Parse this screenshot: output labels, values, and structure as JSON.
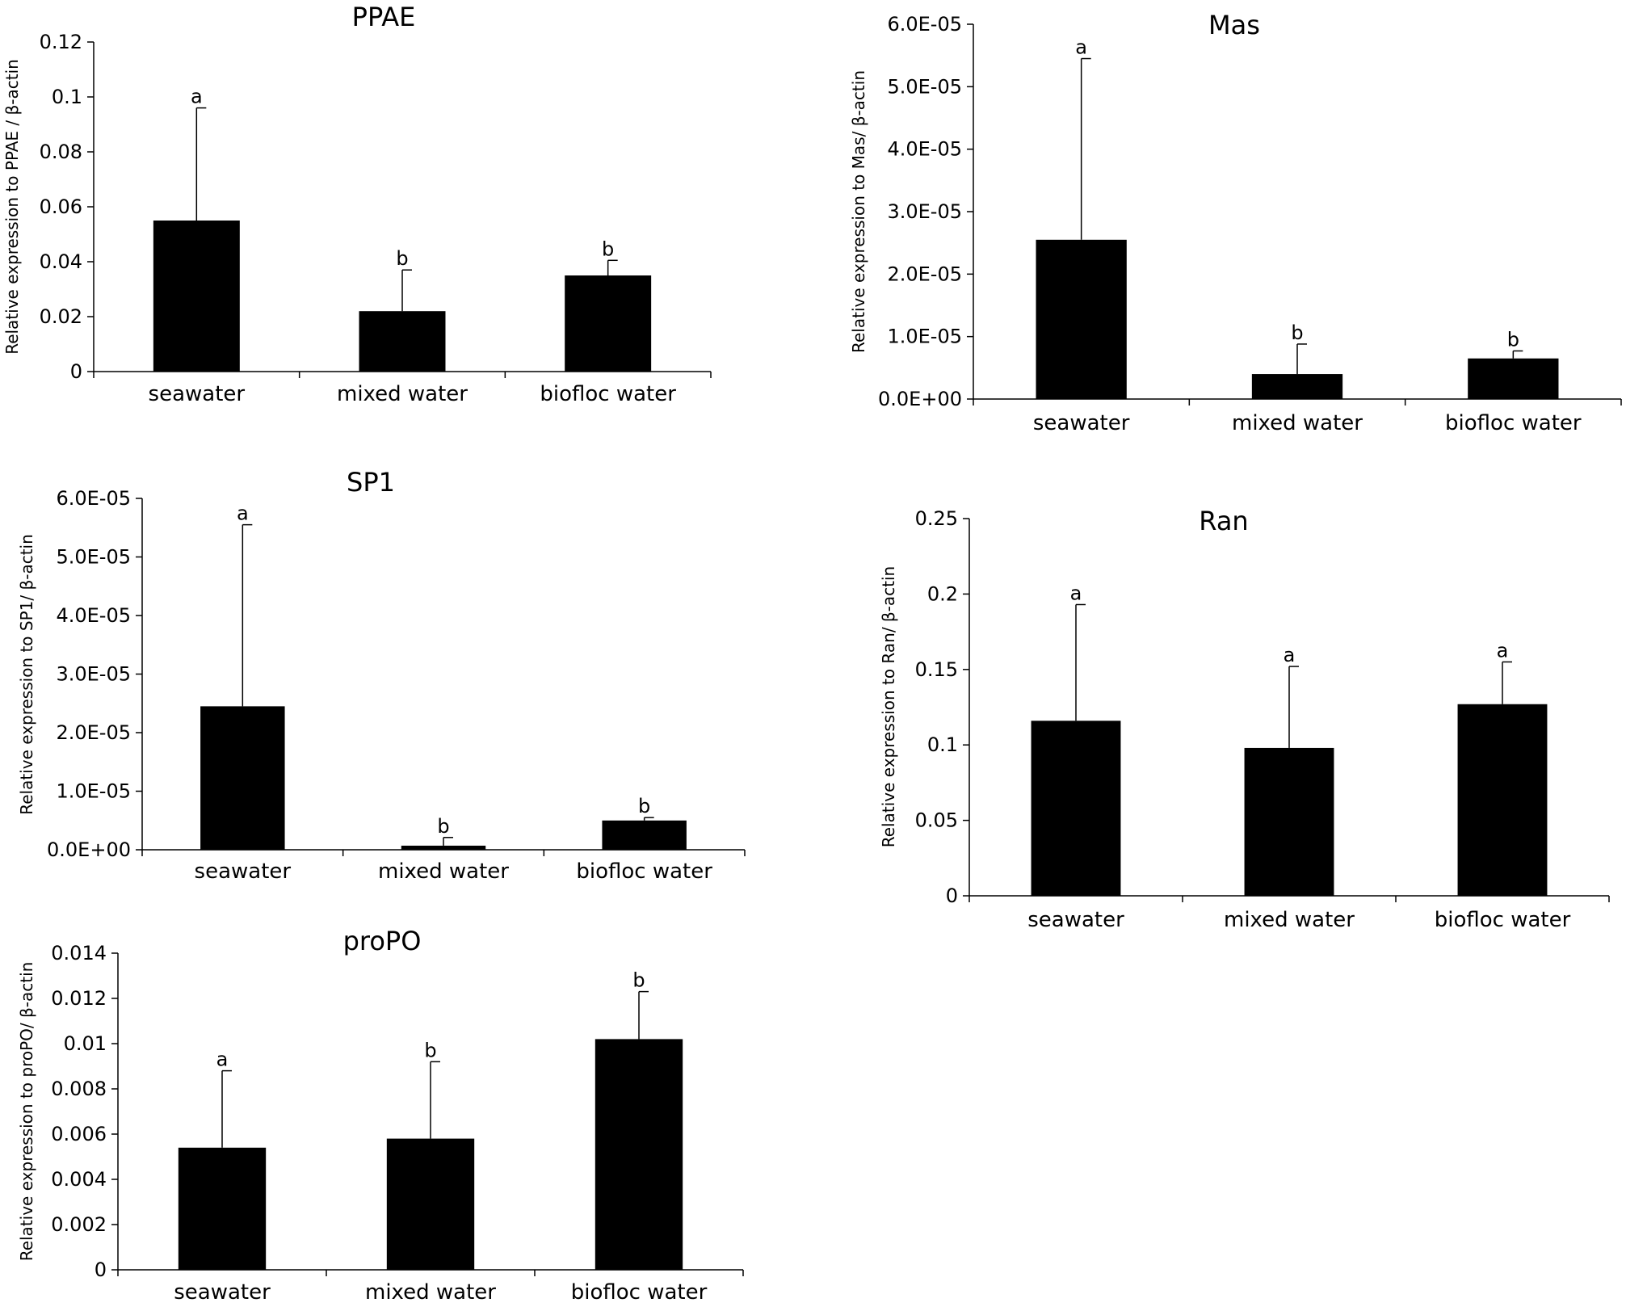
{
  "chart_data": [
    {
      "id": "ppae",
      "type": "bar",
      "title": "PPAE",
      "ylabel": "Relative expression to PPAE / β-actin",
      "categories": [
        "seawater",
        "mixed water",
        "biofloc water"
      ],
      "values": [
        0.055,
        0.022,
        0.035
      ],
      "errors": [
        0.041,
        0.015,
        0.0055
      ],
      "significance": [
        "a",
        "b",
        "b"
      ],
      "ylim": [
        0,
        0.12
      ],
      "yticks": [
        0,
        0.02,
        0.04,
        0.06,
        0.08,
        0.1,
        0.12
      ],
      "ytick_labels": [
        "0",
        "0.02",
        "0.04",
        "0.06",
        "0.08",
        "0.1",
        "0.12"
      ],
      "bar_color": "#000000"
    },
    {
      "id": "mas",
      "type": "bar",
      "title": "Mas",
      "ylabel": "Relative expression to Mas/ β-actin",
      "categories": [
        "seawater",
        "mixed water",
        "biofloc water"
      ],
      "values": [
        2.55e-05,
        4e-06,
        6.5e-06
      ],
      "errors": [
        2.9e-05,
        4.8e-06,
        1.2e-06
      ],
      "significance": [
        "a",
        "b",
        "b"
      ],
      "ylim": [
        0,
        6e-05
      ],
      "yticks": [
        0,
        1e-05,
        2e-05,
        3e-05,
        4e-05,
        5e-05,
        6e-05
      ],
      "ytick_labels": [
        "0.0E+00",
        "1.0E-05",
        "2.0E-05",
        "3.0E-05",
        "4.0E-05",
        "5.0E-05",
        "6.0E-05"
      ],
      "bar_color": "#000000"
    },
    {
      "id": "sp1",
      "type": "bar",
      "title": "SP1",
      "ylabel": "Relative expression to SP1/ β-actin",
      "categories": [
        "seawater",
        "mixed water",
        "biofloc water"
      ],
      "values": [
        2.45e-05,
        7e-07,
        5e-06
      ],
      "errors": [
        3.1e-05,
        1.4e-06,
        5e-07
      ],
      "significance": [
        "a",
        "b",
        "b"
      ],
      "ylim": [
        0,
        6e-05
      ],
      "yticks": [
        0,
        1e-05,
        2e-05,
        3e-05,
        4e-05,
        5e-05,
        6e-05
      ],
      "ytick_labels": [
        "0.0E+00",
        "1.0E-05",
        "2.0E-05",
        "3.0E-05",
        "4.0E-05",
        "5.0E-05",
        "6.0E-05"
      ],
      "bar_color": "#000000"
    },
    {
      "id": "ran",
      "type": "bar",
      "title": "Ran",
      "ylabel": "Relative expression to Ran/ β-actin",
      "categories": [
        "seawater",
        "mixed water",
        "biofloc water"
      ],
      "values": [
        0.116,
        0.098,
        0.127
      ],
      "errors": [
        0.077,
        0.054,
        0.028
      ],
      "significance": [
        "a",
        "a",
        "a"
      ],
      "ylim": [
        0,
        0.25
      ],
      "yticks": [
        0,
        0.05,
        0.1,
        0.15,
        0.2,
        0.25
      ],
      "ytick_labels": [
        "0",
        "0.05",
        "0.1",
        "0.15",
        "0.2",
        "0.25"
      ],
      "bar_color": "#000000"
    },
    {
      "id": "propo",
      "type": "bar",
      "title": "proPO",
      "ylabel": "Relative expression to proPO/ β-actin",
      "categories": [
        "seawater",
        "mixed water",
        "biofloc water"
      ],
      "values": [
        0.0054,
        0.0058,
        0.0102
      ],
      "errors": [
        0.0034,
        0.0034,
        0.0021
      ],
      "significance": [
        "a",
        "b",
        "b"
      ],
      "ylim": [
        0,
        0.014
      ],
      "yticks": [
        0,
        0.002,
        0.004,
        0.006,
        0.008,
        0.01,
        0.012,
        0.014
      ],
      "ytick_labels": [
        "0",
        "0.002",
        "0.004",
        "0.006",
        "0.008",
        "0.01",
        "0.012",
        "0.014"
      ],
      "bar_color": "#000000"
    }
  ]
}
